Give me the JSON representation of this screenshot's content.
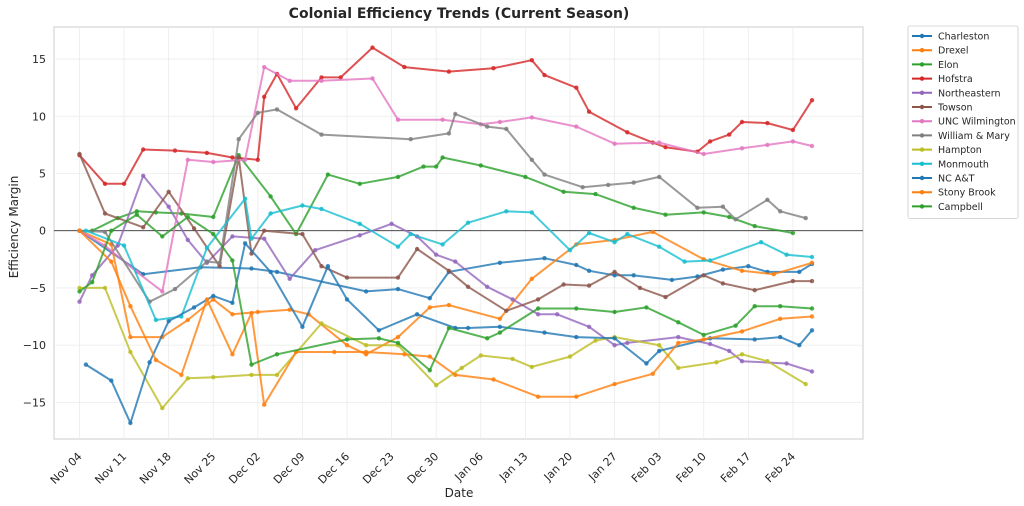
{
  "chart_data": {
    "type": "line",
    "title": "Colonial Efficiency Trends (Current Season)",
    "xlabel": "Date",
    "ylabel": "Efficiency Margin",
    "ylim": [
      -18.2,
      17.8
    ],
    "yticks": [
      -15,
      -10,
      -5,
      0,
      5,
      10,
      15
    ],
    "ytick_labels": [
      "−15",
      "−10",
      "−5",
      "0",
      "5",
      "10",
      "15"
    ],
    "xlim_days_from_nov04": [
      -4,
      123
    ],
    "xticks_days_from_nov04": [
      0,
      7,
      14,
      21,
      28,
      35,
      42,
      49,
      56,
      63,
      70,
      77,
      84,
      91,
      98,
      105,
      112
    ],
    "xtick_labels": [
      "Nov 04",
      "Nov 11",
      "Nov 18",
      "Nov 25",
      "Dec 02",
      "Dec 09",
      "Dec 16",
      "Dec 23",
      "Dec 30",
      "Jan 06",
      "Jan 13",
      "Jan 20",
      "Jan 27",
      "Feb 03",
      "Feb 10",
      "Feb 17",
      "Feb 24"
    ],
    "grid": true,
    "zero_line": true,
    "legend_position": "outside-right-top",
    "x_unit": "days since Nov 04",
    "series": [
      {
        "name": "Charleston",
        "color": "#1f77b4",
        "x": [
          0,
          10,
          19,
          27,
          31,
          45,
          50,
          55,
          58,
          66,
          73,
          78,
          80,
          84,
          87,
          93,
          97,
          101,
          105,
          108,
          113,
          115
        ],
        "y": [
          0,
          -3.8,
          -3.2,
          -3.3,
          -3.6,
          -5.3,
          -5.1,
          -5.9,
          -3.6,
          -2.8,
          -2.4,
          -3.0,
          -3.5,
          -3.9,
          -3.9,
          -4.3,
          -4.0,
          -3.4,
          -3.1,
          -3.6,
          -3.6,
          -2.9
        ]
      },
      {
        "name": "Drexel",
        "color": "#ff7f0e",
        "x": [
          0,
          5,
          8,
          13,
          17,
          21,
          24,
          28,
          33,
          36,
          42,
          45,
          50,
          55,
          58,
          66,
          71,
          78,
          84,
          90,
          98,
          104,
          109,
          115
        ],
        "y": [
          0,
          -1.2,
          -9.3,
          -9.3,
          -7.8,
          -6.0,
          -7.3,
          -7.1,
          -6.9,
          -7.3,
          -10.0,
          -10.8,
          -9.3,
          -6.7,
          -6.5,
          -7.7,
          -4.2,
          -1.2,
          -0.8,
          -0.1,
          -2.5,
          -3.5,
          -3.8,
          -2.8
        ]
      },
      {
        "name": "Elon",
        "color": "#2ca02c",
        "x": [
          2,
          6,
          9,
          12,
          16,
          21,
          25,
          30,
          34,
          39,
          44,
          50,
          54,
          56,
          57,
          63,
          70,
          76,
          81,
          87,
          92,
          98,
          102,
          106,
          112
        ],
        "y": [
          0,
          1.1,
          1.7,
          1.6,
          1.5,
          1.2,
          6.6,
          3.0,
          -0.3,
          4.9,
          4.1,
          4.7,
          5.6,
          5.6,
          6.4,
          5.7,
          4.7,
          3.4,
          3.2,
          2.0,
          1.4,
          1.6,
          1.2,
          0.4,
          -0.2
        ]
      },
      {
        "name": "Hofstra",
        "color": "#d62728",
        "x": [
          0,
          4,
          7,
          10,
          15,
          20,
          24,
          28,
          29,
          31,
          34,
          38,
          41,
          46,
          51,
          58,
          65,
          71,
          73,
          78,
          80,
          86,
          90,
          92,
          97,
          99,
          102,
          104,
          108,
          112,
          115
        ],
        "y": [
          6.6,
          4.1,
          4.1,
          7.1,
          7.0,
          6.8,
          6.4,
          6.2,
          11.7,
          13.7,
          10.7,
          13.4,
          13.4,
          16.0,
          14.3,
          13.9,
          14.2,
          14.9,
          13.6,
          12.5,
          10.4,
          8.6,
          7.7,
          7.3,
          6.9,
          7.8,
          8.4,
          9.5,
          9.4,
          8.8,
          11.4
        ]
      },
      {
        "name": "Northeastern",
        "color": "#9467bd",
        "x": [
          0,
          2,
          6,
          10,
          14,
          17,
          20,
          24,
          29,
          33,
          37,
          44,
          49,
          53,
          56,
          59,
          64,
          68,
          72,
          75,
          80,
          84,
          86,
          94,
          99,
          102,
          104,
          111,
          115
        ],
        "y": [
          -6.2,
          -3.9,
          -1.3,
          4.8,
          2.1,
          -0.8,
          -2.8,
          -0.5,
          -0.7,
          -4.2,
          -1.7,
          -0.4,
          0.6,
          -0.5,
          -2.1,
          -2.7,
          -4.9,
          -6.0,
          -7.3,
          -7.3,
          -8.4,
          -10.0,
          -9.8,
          -9.3,
          -9.9,
          -10.5,
          -11.4,
          -11.6,
          -12.3
        ]
      },
      {
        "name": "Towson",
        "color": "#8c564b",
        "x": [
          0,
          4,
          10,
          14,
          18,
          22,
          25,
          27,
          29,
          35,
          38,
          42,
          50,
          53,
          58,
          61,
          67,
          72,
          76,
          80,
          84,
          88,
          92,
          98,
          101,
          106,
          112,
          115
        ],
        "y": [
          6.7,
          1.5,
          0.3,
          3.4,
          0.2,
          -3.1,
          6.4,
          -2.0,
          0.0,
          -0.3,
          -3.1,
          -4.1,
          -4.1,
          -1.6,
          -3.5,
          -4.9,
          -7.0,
          -6.0,
          -4.7,
          -4.8,
          -3.6,
          -5.0,
          -5.8,
          -3.9,
          -4.6,
          -5.2,
          -4.4,
          -4.4
        ]
      },
      {
        "name": "UNC Wilmington",
        "color": "#e377c2",
        "x": [
          0,
          4,
          9,
          13,
          17,
          21,
          26,
          29,
          33,
          38,
          46,
          50,
          57,
          63,
          66,
          71,
          78,
          84,
          91,
          98,
          104,
          108,
          112,
          115
        ],
        "y": [
          0,
          -1.3,
          -3.6,
          -5.3,
          6.2,
          6.0,
          6.2,
          14.3,
          13.1,
          13.1,
          13.3,
          9.7,
          9.7,
          9.3,
          9.5,
          9.9,
          9.1,
          7.6,
          7.7,
          6.7,
          7.2,
          7.5,
          7.8,
          7.4
        ]
      },
      {
        "name": "William & Mary",
        "color": "#7f7f7f",
        "x": [
          0,
          4,
          11,
          15,
          20,
          22,
          25,
          28,
          31,
          38,
          52,
          58,
          59,
          64,
          67,
          71,
          73,
          79,
          83,
          87,
          91,
          97,
          101,
          103,
          108,
          110,
          114
        ],
        "y": [
          0,
          -0.1,
          -6.2,
          -5.1,
          -2.7,
          -2.8,
          8.0,
          10.3,
          10.6,
          8.4,
          8.0,
          8.5,
          10.2,
          9.1,
          8.9,
          6.2,
          4.9,
          3.8,
          4.0,
          4.2,
          4.7,
          2.0,
          2.1,
          1.0,
          2.7,
          1.7,
          1.1
        ]
      },
      {
        "name": "Hampton",
        "color": "#bcbd22",
        "x": [
          0,
          4,
          8,
          13,
          17,
          21,
          27,
          31,
          38,
          45,
          50,
          56,
          60,
          63,
          68,
          71,
          77,
          81,
          84,
          91,
          94,
          100,
          104,
          108,
          114
        ],
        "y": [
          -5.0,
          -5.0,
          -10.6,
          -15.5,
          -12.9,
          -12.8,
          -12.6,
          -12.6,
          -8.1,
          -10.0,
          -10.0,
          -13.5,
          -12.0,
          -10.9,
          -11.2,
          -11.9,
          -11.0,
          -9.6,
          -9.3,
          -10.0,
          -12.0,
          -11.5,
          -10.8,
          -11.4,
          -13.4
        ]
      },
      {
        "name": "Monmouth",
        "color": "#17becf",
        "x": [
          1,
          7,
          12,
          16,
          20,
          26,
          27,
          30,
          35,
          38,
          44,
          50,
          52,
          57,
          61,
          67,
          71,
          77,
          80,
          84,
          86,
          91,
          95,
          99,
          107,
          111,
          115
        ],
        "y": [
          0,
          -1.3,
          -7.8,
          -7.5,
          -1.5,
          2.8,
          -0.7,
          1.5,
          2.2,
          1.9,
          0.6,
          -1.4,
          -0.3,
          -1.2,
          0.7,
          1.7,
          1.6,
          -1.7,
          -0.2,
          -1.0,
          -0.3,
          -1.4,
          -2.7,
          -2.6,
          -1.0,
          -2.1,
          -2.3
        ]
      },
      {
        "name": "NC A&T",
        "color": "#1f77b4",
        "x": [
          1,
          5,
          8,
          11,
          14,
          18,
          21,
          24,
          26,
          30,
          35,
          39,
          42,
          47,
          53,
          59,
          61,
          66,
          73,
          78,
          84,
          89,
          91,
          99,
          106,
          110,
          113,
          115
        ],
        "y": [
          -11.7,
          -13.1,
          -16.8,
          -11.5,
          -7.9,
          -6.7,
          -5.7,
          -6.3,
          -1.1,
          -3.6,
          -8.4,
          -3.1,
          -6.0,
          -8.7,
          -7.3,
          -8.5,
          -8.5,
          -8.4,
          -8.9,
          -9.3,
          -9.4,
          -11.6,
          -10.5,
          -9.4,
          -9.5,
          -9.3,
          -10.0,
          -8.7
        ]
      },
      {
        "name": "Stony Brook",
        "color": "#ff7f0e",
        "x": [
          0,
          5,
          8,
          12,
          16,
          20,
          24,
          27,
          29,
          34,
          40,
          45,
          51,
          55,
          59,
          65,
          72,
          78,
          84,
          90,
          94,
          98,
          104,
          110,
          115
        ],
        "y": [
          0,
          -2.7,
          -6.6,
          -11.3,
          -12.6,
          -6.0,
          -10.8,
          -7.2,
          -15.2,
          -10.6,
          -10.6,
          -10.6,
          -10.8,
          -11.0,
          -12.6,
          -13.0,
          -14.5,
          -14.5,
          -13.4,
          -12.5,
          -9.8,
          -9.5,
          -8.8,
          -7.7,
          -7.5
        ]
      },
      {
        "name": "Campbell",
        "color": "#2ca02c",
        "x": [
          0,
          2,
          5,
          9,
          13,
          17,
          21,
          24,
          27,
          31,
          42,
          47,
          50,
          55,
          58,
          64,
          66,
          72,
          78,
          84,
          89,
          94,
          98,
          103,
          106,
          110,
          115
        ],
        "y": [
          -5.3,
          -4.5,
          0.0,
          1.4,
          -0.5,
          1.2,
          -0.3,
          -2.6,
          -11.7,
          -10.8,
          -9.5,
          -9.4,
          -9.8,
          -12.2,
          -8.5,
          -9.4,
          -8.9,
          -6.8,
          -6.8,
          -7.1,
          -6.7,
          -8.0,
          -9.1,
          -8.3,
          -6.6,
          -6.6,
          -6.8
        ]
      }
    ]
  }
}
